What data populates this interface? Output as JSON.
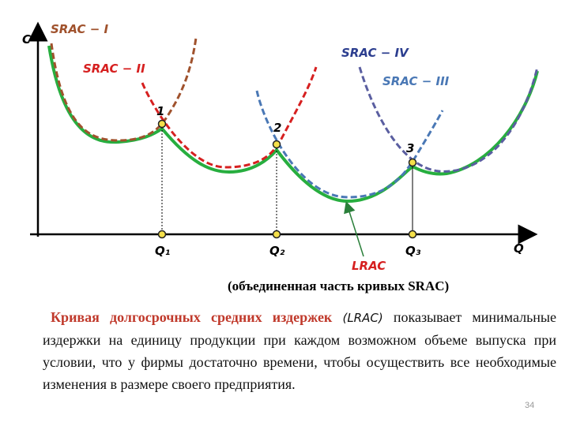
{
  "diagram": {
    "axis_labels": {
      "y": "C",
      "x": "Q"
    },
    "curves": [
      {
        "label": "SRAC − I"
      },
      {
        "label": "SRAC − II"
      },
      {
        "label": "SRAC − III"
      },
      {
        "label": "SRAC − IV"
      }
    ],
    "points": [
      "1",
      "2",
      "3"
    ],
    "q_labels": [
      "Q₁",
      "Q₂",
      "Q₃"
    ],
    "lrac": {
      "label": "LRAC",
      "caption": "(объединенная часть кривых SRAC)"
    }
  },
  "text": {
    "heading": "Кривая долгосрочных средних издержек",
    "abbr": "(LRAC)",
    "rest": "показывает минимальные издержки на единицу продукции при каждом возможном объеме выпуска при условии, что у фирмы достаточно времени, чтобы осуществить все необходимые изменения в размере своего предприятия."
  },
  "page_number": "34"
}
